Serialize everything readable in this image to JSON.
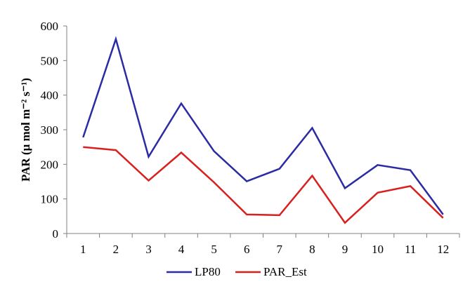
{
  "chart_data": {
    "type": "line",
    "ylabel": "PAR (μ mol m⁻² s⁻¹)",
    "xlabel": "",
    "ylim": [
      0,
      600
    ],
    "yticks": [
      "0",
      "100",
      "200",
      "300",
      "400",
      "500",
      "600"
    ],
    "categories": [
      "1",
      "2",
      "3",
      "4",
      "5",
      "6",
      "7",
      "8",
      "9",
      "10",
      "11",
      "12"
    ],
    "grid": false,
    "legend_position": "bottom",
    "series": [
      {
        "name": "LP80",
        "color": "#2b2ba3",
        "values": [
          278,
          562,
          222,
          376,
          238,
          151,
          187,
          305,
          131,
          198,
          183,
          55
        ]
      },
      {
        "name": "PAR_Est",
        "color": "#d8201e",
        "values": [
          250,
          241,
          153,
          234,
          148,
          55,
          53,
          167,
          31,
          118,
          137,
          45
        ]
      }
    ]
  }
}
